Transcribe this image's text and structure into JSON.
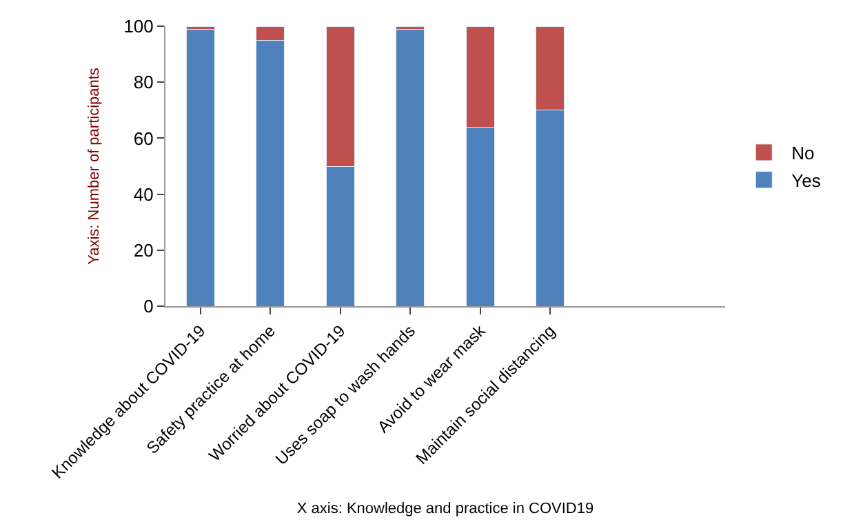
{
  "chart_data": {
    "type": "bar",
    "stacked": true,
    "xlabel": "X axis: Knowledge and practice in COVID19",
    "ylabel": "Yaxis: Number of participants",
    "categories": [
      "Knowledge about COVID-19",
      "Safety practice at home",
      "Worried about COVID-19",
      "Uses soap to wash hands",
      "Avoid to wear mask",
      "Maintain social distancing",
      null,
      null
    ],
    "series": [
      {
        "name": "Yes",
        "color": "#4f81bd",
        "values": [
          99,
          95,
          50,
          99,
          64,
          70,
          null,
          null
        ]
      },
      {
        "name": "No",
        "color": "#c0504d",
        "values": [
          1,
          5,
          50,
          1,
          36,
          30,
          null,
          null
        ]
      }
    ],
    "ylim": [
      0,
      100
    ],
    "yticks": [
      0,
      20,
      40,
      60,
      80,
      100
    ],
    "legend": "right"
  }
}
